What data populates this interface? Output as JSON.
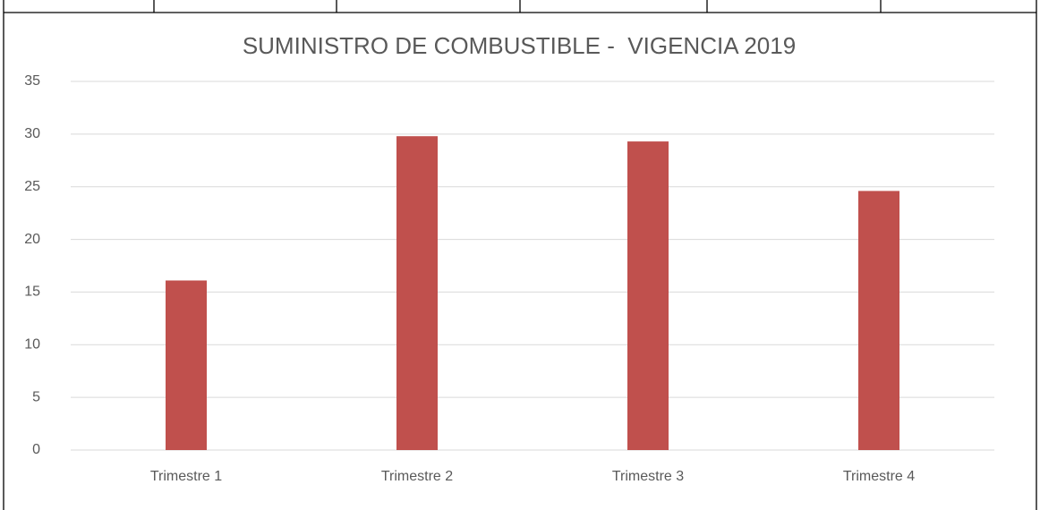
{
  "chart_data": {
    "type": "bar",
    "title": "SUMINISTRO DE COMBUSTIBLE -  VIGENCIA 2019",
    "categories": [
      "Trimestre 1",
      "Trimestre 2",
      "Trimestre 3",
      "Trimestre 4"
    ],
    "values": [
      16.1,
      29.8,
      29.3,
      24.6
    ],
    "color": "#c0504d",
    "ylim": [
      0,
      35
    ],
    "yticks": [
      0,
      5,
      10,
      15,
      20,
      25,
      30,
      35
    ],
    "grid": true
  }
}
